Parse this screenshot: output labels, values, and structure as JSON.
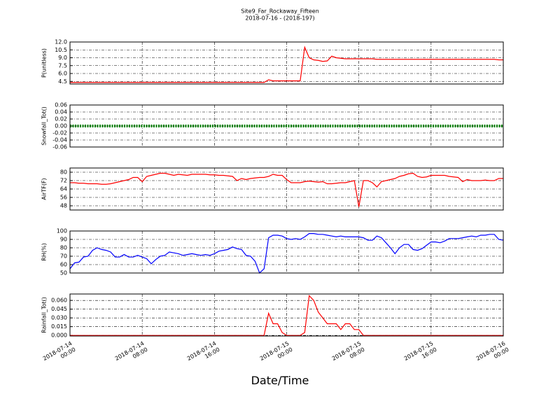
{
  "chart_data": {
    "type": "line",
    "title": "Site9_Far_Rockaway_Fifteen",
    "subtitle": "2018-07-16 - (2018-197)",
    "x_label": "Date/Time",
    "grid": true,
    "xlim": [
      "2018-07-14 00:00",
      "2018-07-16 00:00"
    ],
    "xticks": [
      "2018-07-14 00:00",
      "2018-07-14 08:00",
      "2018-07-14 16:00",
      "2018-07-15 00:00",
      "2018-07-15 08:00",
      "2018-07-15 16:00",
      "2018-07-16 00:00"
    ],
    "x": [
      "2018-07-14 00:00",
      "2018-07-14 00:30",
      "2018-07-14 01:00",
      "2018-07-14 01:30",
      "2018-07-14 02:00",
      "2018-07-14 02:30",
      "2018-07-14 03:00",
      "2018-07-14 03:30",
      "2018-07-14 04:00",
      "2018-07-14 04:30",
      "2018-07-14 05:00",
      "2018-07-14 05:30",
      "2018-07-14 06:00",
      "2018-07-14 06:30",
      "2018-07-14 07:00",
      "2018-07-14 07:30",
      "2018-07-14 08:00",
      "2018-07-14 08:30",
      "2018-07-14 09:00",
      "2018-07-14 09:30",
      "2018-07-14 10:00",
      "2018-07-14 10:30",
      "2018-07-14 11:00",
      "2018-07-14 11:30",
      "2018-07-14 12:00",
      "2018-07-14 12:30",
      "2018-07-14 13:00",
      "2018-07-14 13:30",
      "2018-07-14 14:00",
      "2018-07-14 14:30",
      "2018-07-14 15:00",
      "2018-07-14 15:30",
      "2018-07-14 16:00",
      "2018-07-14 16:30",
      "2018-07-14 17:00",
      "2018-07-14 17:30",
      "2018-07-14 18:00",
      "2018-07-14 18:30",
      "2018-07-14 19:00",
      "2018-07-14 19:30",
      "2018-07-14 20:00",
      "2018-07-14 20:30",
      "2018-07-14 21:00",
      "2018-07-14 21:30",
      "2018-07-14 22:00",
      "2018-07-14 22:30",
      "2018-07-14 23:00",
      "2018-07-14 23:30",
      "2018-07-15 00:00",
      "2018-07-15 00:30",
      "2018-07-15 01:00",
      "2018-07-15 01:30",
      "2018-07-15 02:00",
      "2018-07-15 02:30",
      "2018-07-15 03:00",
      "2018-07-15 03:30",
      "2018-07-15 04:00",
      "2018-07-15 04:30",
      "2018-07-15 05:00",
      "2018-07-15 05:30",
      "2018-07-15 06:00",
      "2018-07-15 06:30",
      "2018-07-15 07:00",
      "2018-07-15 07:30",
      "2018-07-15 08:00",
      "2018-07-15 08:30",
      "2018-07-15 09:00",
      "2018-07-15 09:30",
      "2018-07-15 10:00",
      "2018-07-15 10:30",
      "2018-07-15 11:00",
      "2018-07-15 11:30",
      "2018-07-15 12:00",
      "2018-07-15 12:30",
      "2018-07-15 13:00",
      "2018-07-15 13:30",
      "2018-07-15 14:00",
      "2018-07-15 14:30",
      "2018-07-15 15:00",
      "2018-07-15 15:30",
      "2018-07-15 16:00",
      "2018-07-15 16:30",
      "2018-07-15 17:00",
      "2018-07-15 17:30",
      "2018-07-15 18:00",
      "2018-07-15 18:30",
      "2018-07-15 19:00",
      "2018-07-15 19:30",
      "2018-07-15 20:00",
      "2018-07-15 20:30",
      "2018-07-15 21:00",
      "2018-07-15 21:30",
      "2018-07-15 22:00",
      "2018-07-15 22:30",
      "2018-07-15 23:00",
      "2018-07-15 23:30",
      "2018-07-16 00:00"
    ],
    "panels": [
      {
        "y_label": "P(unitless)",
        "color": "#ff0000",
        "ylim": [
          4,
          12
        ],
        "yticks": [
          4.5,
          {
            "value": 6,
            "label": "6.0"
          },
          7.5,
          {
            "value": 9,
            "label": "9.0"
          },
          10.5,
          {
            "value": 12,
            "label": "12.0"
          }
        ],
        "values": [
          4.3,
          4.3,
          4.3,
          4.3,
          4.3,
          4.3,
          4.3,
          4.3,
          4.3,
          4.3,
          4.3,
          4.3,
          4.3,
          4.3,
          4.3,
          4.3,
          4.3,
          4.3,
          4.3,
          4.3,
          4.3,
          4.3,
          4.3,
          4.3,
          4.3,
          4.3,
          4.3,
          4.3,
          4.3,
          4.3,
          4.3,
          4.3,
          4.3,
          4.3,
          4.3,
          4.3,
          4.3,
          4.3,
          4.3,
          4.3,
          4.3,
          4.3,
          4.3,
          4.3,
          4.8,
          4.6,
          4.6,
          4.6,
          4.6,
          4.6,
          4.6,
          4.6,
          11.0,
          9.0,
          8.6,
          8.5,
          8.3,
          8.4,
          9.3,
          9.0,
          8.9,
          8.8,
          8.8,
          8.8,
          8.8,
          8.8,
          8.8,
          8.8,
          8.7,
          8.7,
          8.7,
          8.7,
          8.7,
          8.7,
          8.7,
          8.7,
          8.7,
          8.7,
          8.7,
          8.7,
          8.7,
          8.7,
          8.7,
          8.7,
          8.7,
          8.7,
          8.7,
          8.7,
          8.7,
          8.7,
          8.7,
          8.7,
          8.7,
          8.7,
          8.7,
          8.6,
          8.6
        ]
      },
      {
        "y_label": "Snowfall_Tot()",
        "color": "#008000",
        "ylim": [
          -0.06,
          0.06
        ],
        "yticks": [
          -0.06,
          -0.04,
          -0.02,
          {
            "value": 0,
            "label": "0.00"
          },
          0.02,
          0.04,
          0.06
        ],
        "values": [
          0,
          0,
          0,
          0,
          0,
          0,
          0,
          0,
          0,
          0,
          0,
          0,
          0,
          0,
          0,
          0,
          0,
          0,
          0,
          0,
          0,
          0,
          0,
          0,
          0,
          0,
          0,
          0,
          0,
          0,
          0,
          0,
          0,
          0,
          0,
          0,
          0,
          0,
          0,
          0,
          0,
          0,
          0,
          0,
          0,
          0,
          0,
          0,
          0,
          0,
          0,
          0,
          0,
          0,
          0,
          0,
          0,
          0,
          0,
          0,
          0,
          0,
          0,
          0,
          0,
          0,
          0,
          0,
          0,
          0,
          0,
          0,
          0,
          0,
          0,
          0,
          0,
          0,
          0,
          0,
          0,
          0,
          0,
          0,
          0,
          0,
          0,
          0,
          0,
          0,
          0,
          0,
          0,
          0,
          0,
          0,
          0
        ]
      },
      {
        "y_label": "AirTF(F)",
        "color": "#ff0000",
        "ylim": [
          44,
          84
        ],
        "yticks": [
          48,
          56,
          64,
          72,
          80
        ],
        "values": [
          70,
          70,
          69.5,
          69.5,
          69,
          69,
          69,
          68.5,
          68.5,
          69,
          70,
          71,
          72,
          73,
          75,
          75,
          71,
          76,
          77,
          78,
          79,
          79,
          78,
          77,
          78,
          77.5,
          77,
          78,
          78,
          78,
          78,
          77.5,
          77.5,
          77,
          77,
          76.5,
          76,
          72,
          74,
          73,
          74,
          74.5,
          75,
          75,
          76,
          78,
          77,
          77,
          73,
          70,
          70,
          70,
          71,
          71.5,
          71,
          70.5,
          71,
          69,
          69,
          69.5,
          70,
          70,
          71,
          72,
          47,
          72,
          72,
          70,
          66,
          71,
          72,
          73,
          74,
          76,
          77,
          78.5,
          79,
          76,
          75,
          75.5,
          77,
          77,
          77,
          77,
          76,
          75.5,
          75,
          71,
          73,
          72,
          72,
          72,
          72.5,
          72,
          72,
          74,
          74
        ]
      },
      {
        "y_label": "RH(%)",
        "color": "#0000ff",
        "ylim": [
          50,
          100
        ],
        "yticks": [
          50,
          60,
          70,
          80,
          90,
          100
        ],
        "values": [
          55,
          62,
          63,
          69,
          70,
          77,
          80,
          78,
          77,
          75,
          69,
          69,
          72,
          69,
          69,
          71,
          69,
          67,
          61,
          66,
          70,
          71,
          75,
          74,
          73,
          71,
          72,
          73,
          72,
          71,
          72,
          71,
          73,
          76,
          77,
          78,
          81,
          79,
          78,
          71,
          70,
          64,
          50,
          55,
          92,
          95,
          95,
          94,
          91,
          90,
          91,
          90,
          93,
          97,
          97,
          96,
          96,
          95,
          94,
          93,
          94,
          93,
          93,
          93,
          93,
          92,
          89,
          89,
          94,
          92,
          86,
          80,
          73,
          80,
          84,
          84,
          78,
          77,
          79,
          83,
          87,
          87,
          86,
          88,
          91,
          91,
          91,
          92,
          93,
          94,
          93,
          95,
          95,
          96,
          96,
          90,
          89
        ]
      },
      {
        "y_label": "Rainfall_Tot()",
        "color": "#ff0000",
        "ylim": [
          -0.001,
          0.071
        ],
        "yticks": [
          {
            "value": 0,
            "label": "0.000"
          },
          0.015,
          {
            "value": 0.03,
            "label": "0.030"
          },
          0.045,
          {
            "value": 0.06,
            "label": "0.060"
          }
        ],
        "values": [
          0,
          0,
          0,
          0,
          0,
          0,
          0,
          0,
          0,
          0,
          0,
          0,
          0,
          0,
          0,
          0,
          0,
          0,
          0,
          0,
          0,
          0,
          0,
          0,
          0,
          0,
          0,
          0,
          0,
          0,
          0,
          0,
          0,
          0,
          0,
          0,
          0,
          0,
          0,
          0,
          0,
          0,
          0,
          0,
          0.038,
          0.02,
          0.02,
          0.005,
          0,
          0,
          0,
          0,
          0.005,
          0.068,
          0.06,
          0.04,
          0.03,
          0.02,
          0.02,
          0.02,
          0.01,
          0.02,
          0.02,
          0.01,
          0.01,
          0,
          0,
          0,
          0,
          0,
          0,
          0,
          0,
          0,
          0,
          0,
          0,
          0,
          0,
          0,
          0,
          0,
          0,
          0,
          0,
          0,
          0,
          0,
          0,
          0,
          0,
          0,
          0,
          0,
          0,
          0,
          0
        ]
      }
    ]
  }
}
